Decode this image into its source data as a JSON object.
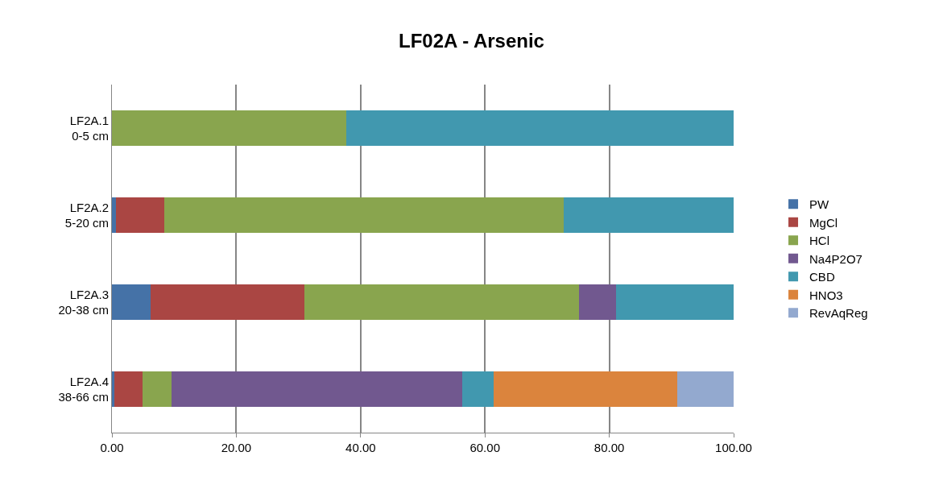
{
  "chart_data": {
    "type": "bar",
    "title": "LF02A - Arsenic",
    "orientation": "horizontal",
    "stacked": true,
    "categories": [
      "LF2A.1\n0-5 cm",
      "LF2A.2\n5-20 cm",
      "LF2A.3\n20-38 cm",
      "LF2A.4\n38-66 cm"
    ],
    "series": [
      {
        "name": "PW",
        "color": "#4572a7",
        "values": [
          null,
          0.6,
          6.2,
          0.4
        ]
      },
      {
        "name": "MgCl",
        "color": "#aa4643",
        "values": [
          null,
          7.8,
          24.8,
          4.5
        ]
      },
      {
        "name": "HCl",
        "color": "#89a54e",
        "values": [
          37.7,
          64.3,
          44.1,
          4.7
        ]
      },
      {
        "name": "Na4P2O7",
        "color": "#71588f",
        "values": [
          null,
          null,
          6.0,
          46.7
        ]
      },
      {
        "name": "CBD",
        "color": "#4198af",
        "values": [
          62.3,
          27.3,
          18.9,
          5.1
        ]
      },
      {
        "name": "HNO3",
        "color": "#db843d",
        "values": [
          null,
          null,
          null,
          29.5
        ]
      },
      {
        "name": "RevAqReg",
        "color": "#93a9cf",
        "values": [
          null,
          null,
          null,
          9.1
        ]
      }
    ],
    "xlim": [
      0,
      100
    ],
    "xticks": [
      {
        "value": 0,
        "label": "0.00"
      },
      {
        "value": 20,
        "label": "20.00"
      },
      {
        "value": 40,
        "label": "40.00"
      },
      {
        "value": 60,
        "label": "60.00"
      },
      {
        "value": 80,
        "label": "80.00"
      },
      {
        "value": 100,
        "label": "100.00"
      }
    ],
    "grid": "x",
    "legend": "right"
  }
}
